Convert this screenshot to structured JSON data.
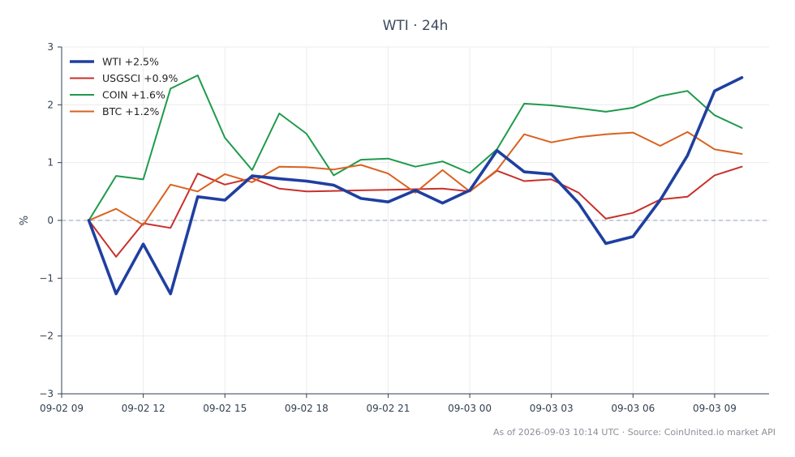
{
  "chart_data": {
    "type": "line",
    "title": "WTI · 24h",
    "xlabel": "",
    "ylabel": "%",
    "ylim": [
      -3,
      3
    ],
    "yticks": [
      -3,
      -2,
      -1,
      0,
      1,
      2,
      3
    ],
    "ytick_labels": [
      "−3",
      "−2",
      "−1",
      "0",
      "1",
      "2",
      "3"
    ],
    "xlim": [
      "2026-09-02 09:00",
      "2026-09-03 11:00"
    ],
    "xticks": [
      {
        "x": "2026-09-02 09:00",
        "label": "09-02 09"
      },
      {
        "x": "2026-09-02 12:00",
        "label": "09-02 12"
      },
      {
        "x": "2026-09-02 15:00",
        "label": "09-02 15"
      },
      {
        "x": "2026-09-02 18:00",
        "label": "09-02 18"
      },
      {
        "x": "2026-09-02 21:00",
        "label": "09-02 21"
      },
      {
        "x": "2026-09-03 00:00",
        "label": "09-03 00"
      },
      {
        "x": "2026-09-03 03:00",
        "label": "09-03 03"
      },
      {
        "x": "2026-09-03 06:00",
        "label": "09-03 06"
      },
      {
        "x": "2026-09-03 09:00",
        "label": "09-03 09"
      }
    ],
    "grid": true,
    "zero_line": true,
    "legend_position": "top-left",
    "x": [
      "2026-09-02 10:00",
      "2026-09-02 11:00",
      "2026-09-02 12:00",
      "2026-09-02 13:00",
      "2026-09-02 14:00",
      "2026-09-02 15:00",
      "2026-09-02 16:00",
      "2026-09-02 17:00",
      "2026-09-02 18:00",
      "2026-09-02 19:00",
      "2026-09-02 20:00",
      "2026-09-02 21:00",
      "2026-09-02 22:00",
      "2026-09-02 23:00",
      "2026-09-03 00:00",
      "2026-09-03 01:00",
      "2026-09-03 02:00",
      "2026-09-03 03:00",
      "2026-09-03 04:00",
      "2026-09-03 05:00",
      "2026-09-03 06:00",
      "2026-09-03 07:00",
      "2026-09-03 08:00",
      "2026-09-03 09:00",
      "2026-09-03 10:00"
    ],
    "series": [
      {
        "name": "WTI +2.5%",
        "color": "#1f3fa0",
        "bold": true,
        "values": [
          0,
          -1.27,
          -0.41,
          -1.27,
          0.41,
          0.35,
          0.77,
          0.72,
          0.68,
          0.61,
          0.38,
          0.32,
          0.52,
          0.3,
          0.52,
          1.21,
          0.84,
          0.8,
          0.3,
          -0.4,
          -0.28,
          0.35,
          1.12,
          2.24,
          2.47
        ]
      },
      {
        "name": "USGSCI +0.9%",
        "color": "#c9302c",
        "bold": false,
        "values": [
          0,
          -0.63,
          -0.05,
          -0.13,
          0.81,
          0.62,
          0.73,
          0.55,
          0.5,
          0.51,
          0.52,
          0.53,
          0.54,
          0.55,
          0.5,
          0.86,
          0.68,
          0.71,
          0.48,
          0.03,
          0.13,
          0.36,
          0.41,
          0.78,
          0.93
        ]
      },
      {
        "name": "COIN +1.6%",
        "color": "#1f9a4b",
        "bold": false,
        "values": [
          0,
          0.77,
          0.71,
          2.28,
          2.51,
          1.43,
          0.87,
          1.85,
          1.5,
          0.78,
          1.05,
          1.07,
          0.93,
          1.02,
          0.82,
          1.23,
          2.02,
          1.99,
          1.94,
          1.88,
          1.95,
          2.15,
          2.24,
          1.82,
          1.6
        ]
      },
      {
        "name": "BTC +1.2%",
        "color": "#d9621f",
        "bold": false,
        "values": [
          0,
          0.2,
          -0.08,
          0.62,
          0.5,
          0.8,
          0.66,
          0.93,
          0.92,
          0.88,
          0.96,
          0.81,
          0.48,
          0.87,
          0.5,
          0.87,
          1.49,
          1.35,
          1.44,
          1.49,
          1.52,
          1.29,
          1.53,
          1.23,
          1.15
        ]
      }
    ]
  },
  "footer": "As of 2026-09-03 10:14 UTC · Source: CoinUnited.io market API"
}
